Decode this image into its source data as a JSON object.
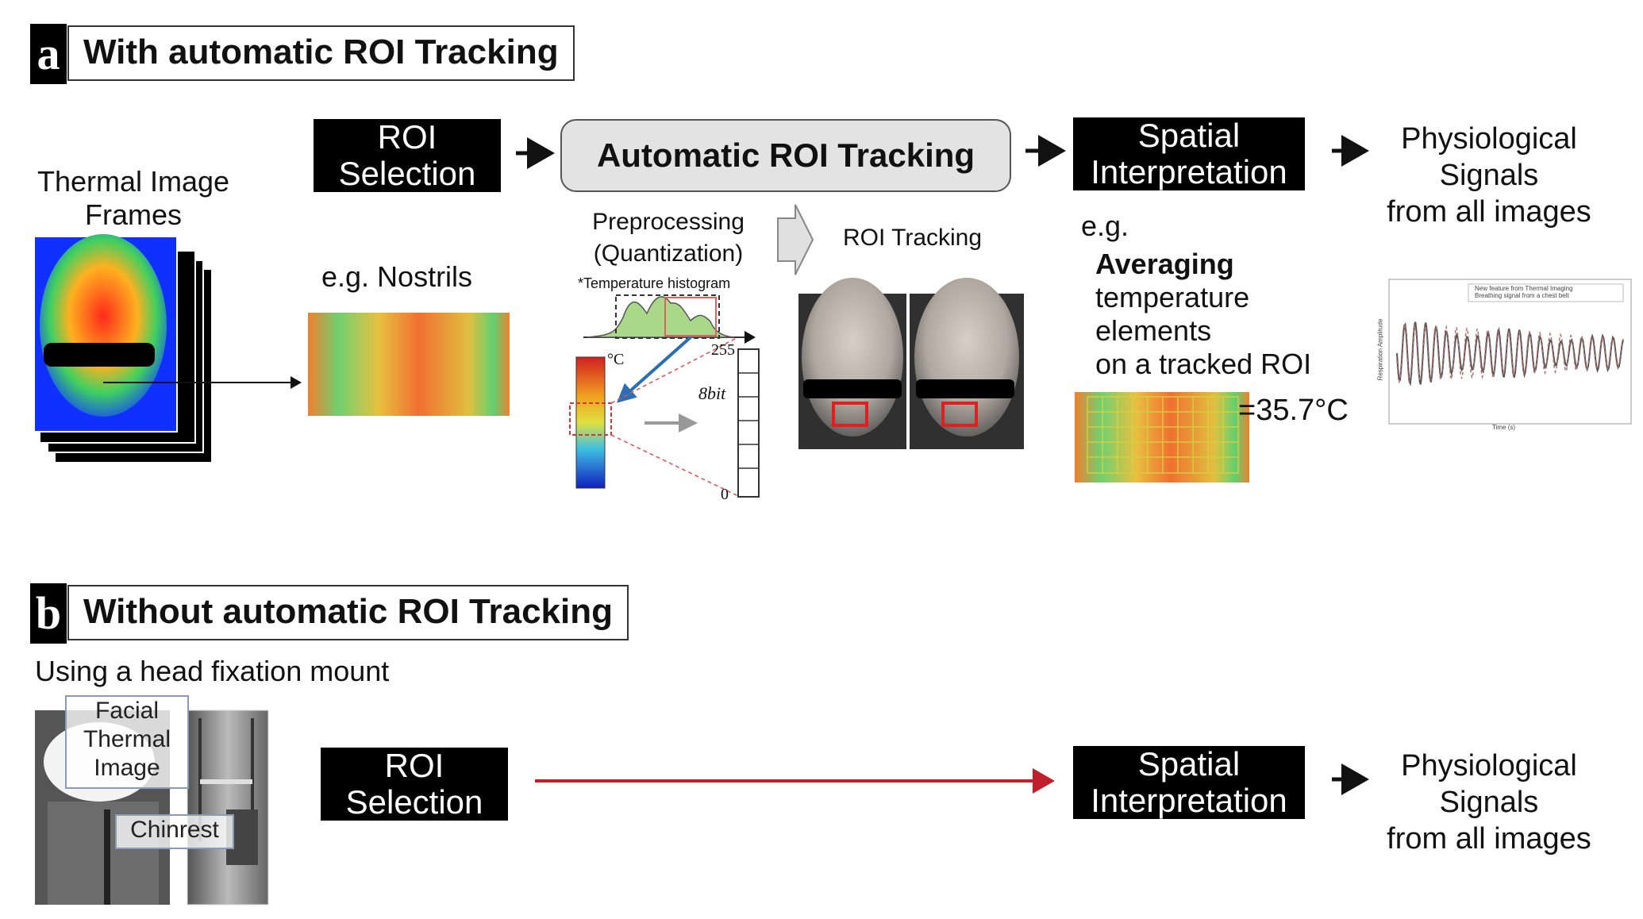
{
  "section_a": {
    "letter": "a",
    "title": "With automatic ROI Tracking",
    "frames_label_1": "Thermal Image",
    "frames_label_2": "Frames",
    "roi_selection_1": "ROI",
    "roi_selection_2": "Selection",
    "nostrils_label": "e.g. Nostrils",
    "auto_tracking": "Automatic ROI Tracking",
    "preprocessing_1": "Preprocessing",
    "preprocessing_2": "(Quantization)",
    "histogram_label": "*Temperature histogram",
    "hist_255": "255",
    "hist_unit": "°C",
    "bit_label": "8bit",
    "bit_zero": "0",
    "roi_tracking": "ROI Tracking",
    "spatial_1": "Spatial",
    "spatial_2": "Interpretation",
    "eg": "e.g.",
    "averaging": "Averaging",
    "avg_line2": "temperature",
    "avg_line3": "elements",
    "avg_line4": "on a tracked ROI",
    "temp_value": "=35.7°C",
    "physio_1": "Physiological",
    "physio_2": "Signals",
    "physio_3": "from all images",
    "plot_legend_1": "New feature from Thermal Imaging",
    "plot_legend_2": "Breathing signal from a chest belt",
    "plot_xlabel": "Time (s)",
    "plot_ylabel": "Respiration Amplitude"
  },
  "section_b": {
    "letter": "b",
    "title": "Without automatic ROI Tracking",
    "subtitle": "Using a head fixation mount",
    "facial_1": "Facial",
    "facial_2": "Thermal",
    "facial_3": "Image",
    "chinrest": "Chinrest",
    "roi_selection_1": "ROI",
    "roi_selection_2": "Selection",
    "spatial_1": "Spatial",
    "spatial_2": "Interpretation",
    "physio_1": "Physiological",
    "physio_2": "Signals",
    "physio_3": "from all images"
  },
  "colors": {
    "arrow_red": "#c0202a",
    "roi_red": "#e02020",
    "block": "#000000",
    "grey_box": "#e3e3e3"
  }
}
